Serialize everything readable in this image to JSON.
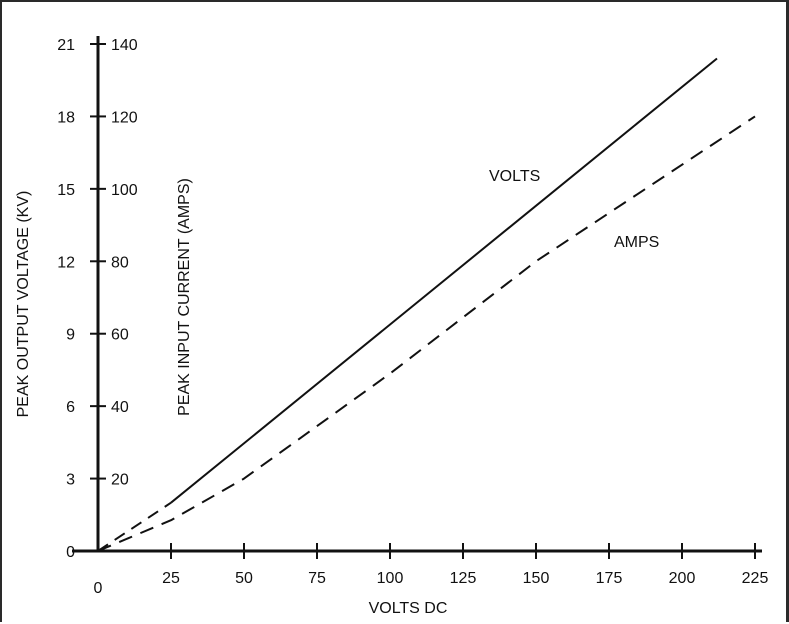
{
  "chart_data": {
    "type": "line",
    "xlabel": "VOLTS DC",
    "ylabel": "PEAK OUTPUT VOLTAGE (KV)",
    "y2label": "PEAK INPUT CURRENT (AMPS)",
    "xlim": [
      0,
      225
    ],
    "ylim": [
      0,
      21
    ],
    "y2lim": [
      0,
      140
    ],
    "x_ticks": [
      "0",
      "25",
      "50",
      "75",
      "100",
      "125",
      "150",
      "175",
      "200",
      "225"
    ],
    "y_ticks": [
      "0",
      "3",
      "6",
      "9",
      "12",
      "15",
      "18",
      "21"
    ],
    "y2_ticks": [
      "20",
      "40",
      "60",
      "80",
      "100",
      "120",
      "140"
    ],
    "grid": false,
    "series": [
      {
        "name": "VOLTS",
        "axis": "left",
        "style": "solid",
        "points": [
          [
            0,
            0
          ],
          [
            25,
            2.0
          ],
          [
            212,
            20.4
          ]
        ]
      },
      {
        "name": "AMPS",
        "axis": "right",
        "style": "dashed",
        "points": [
          [
            0,
            0
          ],
          [
            25,
            8.5
          ],
          [
            50,
            20
          ],
          [
            100,
            49
          ],
          [
            150,
            80
          ],
          [
            225,
            120
          ]
        ]
      }
    ]
  }
}
